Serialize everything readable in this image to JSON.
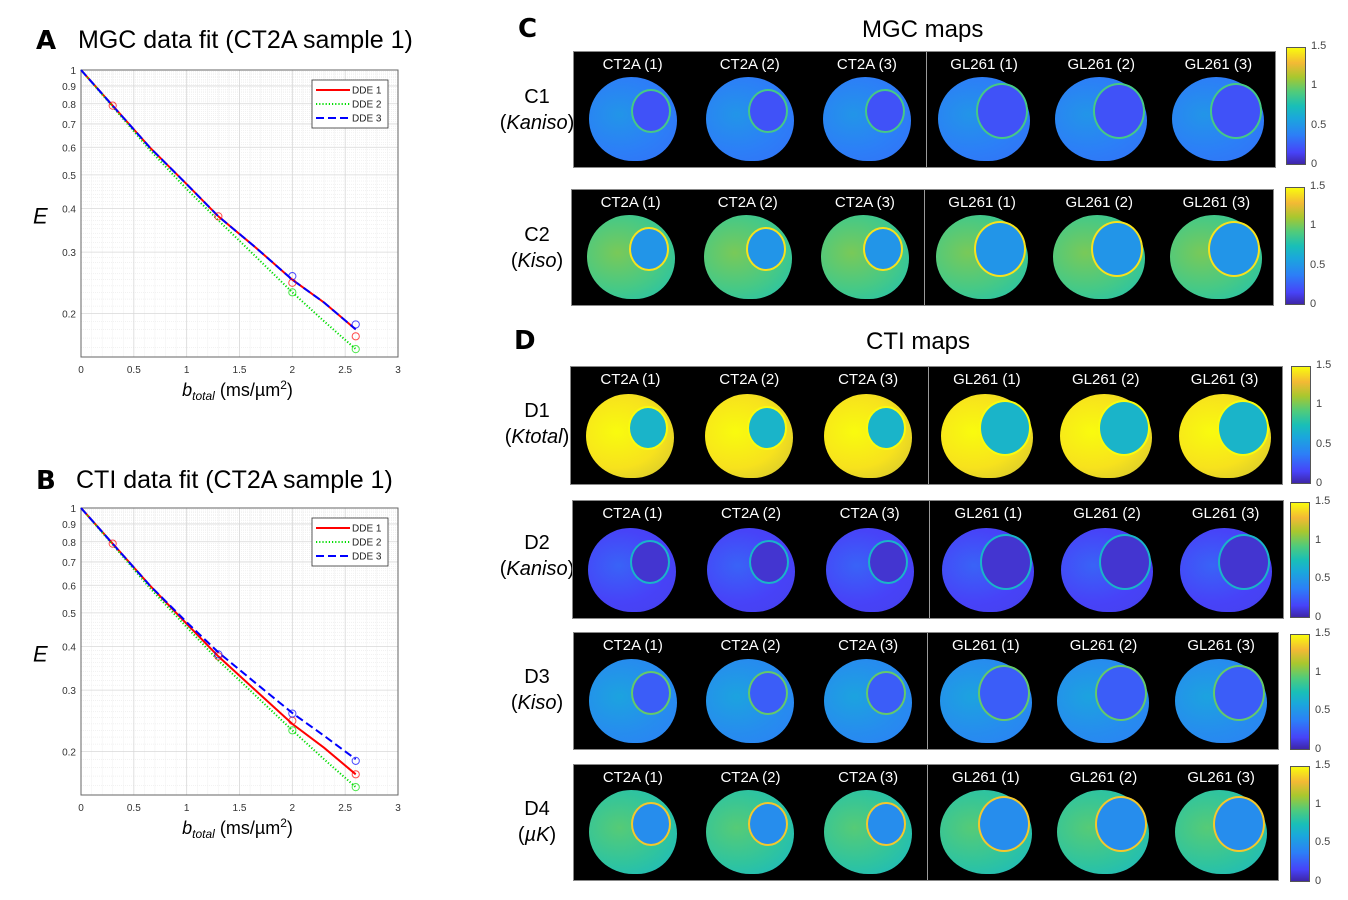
{
  "panels": {
    "A": {
      "letter": "A",
      "title": "MGC data fit (CT2A sample 1)"
    },
    "B": {
      "letter": "B",
      "title": "CTI data fit (CT2A sample 1)"
    },
    "C": {
      "letter": "C",
      "title": "MGC maps"
    },
    "D": {
      "letter": "D",
      "title": "CTI maps"
    }
  },
  "axis_labels": {
    "y": "E",
    "x_main": "b",
    "x_sub": "total",
    "x_unit": " (ms/µm",
    "x_sup": "2",
    "x_close": ")"
  },
  "chart_data": [
    {
      "type": "line",
      "id": "A",
      "title": "MGC data fit (CT2A sample 1)",
      "xlabel": "b_total (ms/µm²)",
      "ylabel": "E",
      "xscale": "linear",
      "yscale": "log",
      "xlim": [
        0,
        3
      ],
      "ylim": [
        0.15,
        1
      ],
      "xticks": [
        "0",
        "0.5",
        "1",
        "1.5",
        "2",
        "2.5",
        "3"
      ],
      "xtick_values": [
        0,
        0.5,
        1,
        1.5,
        2,
        2.5,
        3
      ],
      "yticks": [
        "0.2",
        "0.3",
        "0.4",
        "0.5",
        "0.6",
        "0.7",
        "0.8",
        "0.9",
        "1"
      ],
      "ytick_values": [
        0.2,
        0.3,
        0.4,
        0.5,
        0.6,
        0.7,
        0.8,
        0.9,
        1
      ],
      "grid": true,
      "legend": "top-right",
      "series": [
        {
          "name": "DDE 1",
          "color": "#ff0000",
          "style": "solid",
          "fit_x": [
            0,
            0.3,
            0.65,
            1,
            1.3,
            1.65,
            2,
            2.3,
            2.6
          ],
          "fit_y": [
            1,
            0.79,
            0.6,
            0.47,
            0.38,
            0.31,
            0.25,
            0.215,
            0.18
          ],
          "points_x": [
            0.3,
            1.3,
            2,
            2.6
          ],
          "points_y": [
            0.79,
            0.38,
            0.245,
            0.172
          ]
        },
        {
          "name": "DDE 2",
          "color": "#00dd00",
          "style": "dotted",
          "fit_x": [
            0,
            0.3,
            0.65,
            1,
            1.3,
            1.65,
            2,
            2.3,
            2.6
          ],
          "fit_y": [
            1,
            0.785,
            0.59,
            0.455,
            0.37,
            0.292,
            0.23,
            0.19,
            0.158
          ],
          "points_x": [
            2,
            2.6
          ],
          "points_y": [
            0.23,
            0.158
          ]
        },
        {
          "name": "DDE 3",
          "color": "#0000ff",
          "style": "dashed",
          "fit_x": [
            0,
            0.3,
            0.65,
            1,
            1.3,
            1.65,
            2,
            2.3,
            2.6
          ],
          "fit_y": [
            1,
            0.79,
            0.6,
            0.47,
            0.38,
            0.31,
            0.25,
            0.215,
            0.18
          ],
          "points_x": [
            2,
            2.6
          ],
          "points_y": [
            0.256,
            0.186
          ]
        }
      ]
    },
    {
      "type": "line",
      "id": "B",
      "title": "CTI data fit (CT2A sample 1)",
      "xlabel": "b_total (ms/µm²)",
      "ylabel": "E",
      "xscale": "linear",
      "yscale": "log",
      "xlim": [
        0,
        3
      ],
      "ylim": [
        0.15,
        1
      ],
      "xticks": [
        "0",
        "0.5",
        "1",
        "1.5",
        "2",
        "2.5",
        "3"
      ],
      "xtick_values": [
        0,
        0.5,
        1,
        1.5,
        2,
        2.5,
        3
      ],
      "yticks": [
        "0.2",
        "0.3",
        "0.4",
        "0.5",
        "0.6",
        "0.7",
        "0.8",
        "0.9",
        "1"
      ],
      "ytick_values": [
        0.2,
        0.3,
        0.4,
        0.5,
        0.6,
        0.7,
        0.8,
        0.9,
        1
      ],
      "grid": true,
      "legend": "top-right",
      "series": [
        {
          "name": "DDE 1",
          "color": "#ff0000",
          "style": "solid",
          "fit_x": [
            0,
            0.3,
            0.65,
            1,
            1.3,
            1.65,
            2,
            2.3,
            2.6
          ],
          "fit_y": [
            1,
            0.79,
            0.6,
            0.465,
            0.375,
            0.3,
            0.24,
            0.205,
            0.172
          ],
          "points_x": [
            0.3,
            1.3,
            2,
            2.6
          ],
          "points_y": [
            0.79,
            0.375,
            0.245,
            0.172
          ]
        },
        {
          "name": "DDE 2",
          "color": "#00dd00",
          "style": "dotted",
          "fit_x": [
            0,
            0.3,
            0.65,
            1,
            1.3,
            1.65,
            2,
            2.3,
            2.6
          ],
          "fit_y": [
            1,
            0.785,
            0.59,
            0.455,
            0.365,
            0.29,
            0.23,
            0.19,
            0.158
          ],
          "points_x": [
            2,
            2.6
          ],
          "points_y": [
            0.23,
            0.158
          ]
        },
        {
          "name": "DDE 3",
          "color": "#0000ff",
          "style": "dashed",
          "fit_x": [
            0,
            0.3,
            0.65,
            1,
            1.3,
            1.65,
            2,
            2.3,
            2.6
          ],
          "fit_y": [
            1,
            0.79,
            0.6,
            0.47,
            0.385,
            0.315,
            0.258,
            0.222,
            0.19
          ],
          "points_x": [
            1.3,
            2,
            2.6
          ],
          "points_y": [
            0.38,
            0.257,
            0.188
          ]
        }
      ]
    }
  ],
  "maps": {
    "samples": [
      "CT2A (1)",
      "CT2A (2)",
      "CT2A (3)",
      "GL261 (1)",
      "GL261 (2)",
      "GL261 (3)"
    ],
    "colorbar": {
      "min": 0,
      "max": 1.5,
      "ticks": [
        "0",
        "0.5",
        "1",
        "1.5"
      ],
      "colormap": "parula"
    },
    "rows": [
      {
        "id": "C1",
        "label": "C1",
        "param": "Kaniso",
        "group": "MGC",
        "level": 0.25
      },
      {
        "id": "C2",
        "label": "C2",
        "param": "Kiso",
        "group": "MGC",
        "level": 0.6
      },
      {
        "id": "D1",
        "label": "D1",
        "param": "Ktotal",
        "group": "CTI",
        "level": 0.95
      },
      {
        "id": "D2",
        "label": "D2",
        "param": "Kaniso",
        "group": "CTI",
        "level": 0.1
      },
      {
        "id": "D3",
        "label": "D3",
        "param": "Kiso",
        "group": "CTI",
        "level": 0.3
      },
      {
        "id": "D4",
        "label": "D4",
        "param": "µK",
        "group": "CTI",
        "level": 0.55
      }
    ]
  }
}
